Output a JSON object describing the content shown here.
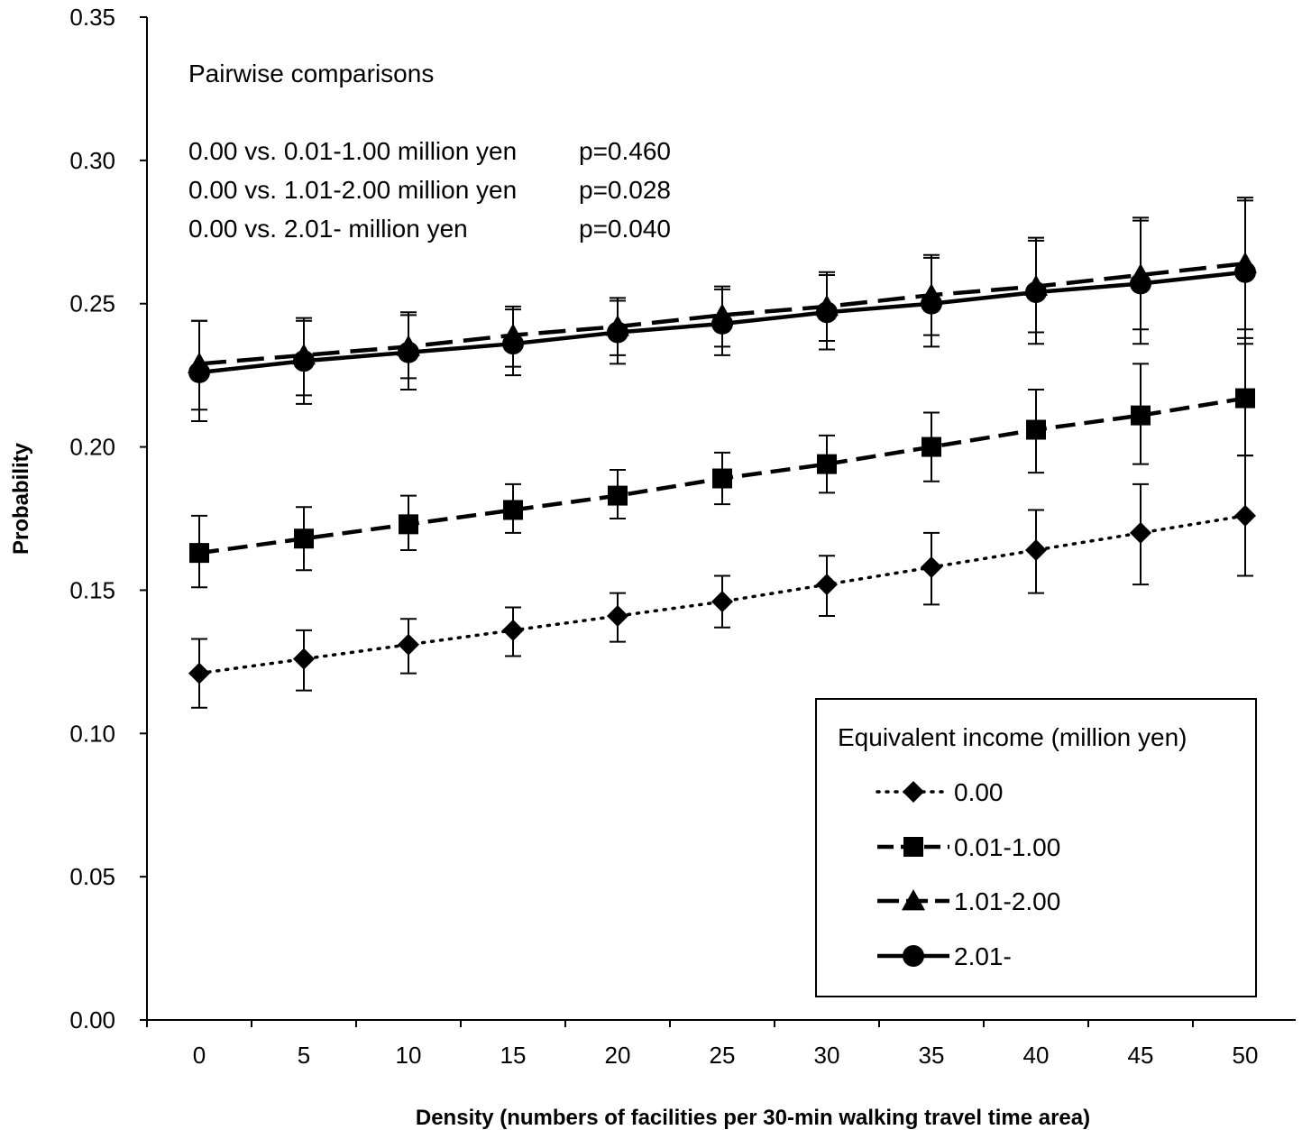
{
  "chart_data": {
    "type": "line",
    "xlabel": "Density (numbers of facilities per 30-min walking travel time area)",
    "ylabel": "Probability",
    "x": [
      0,
      5,
      10,
      15,
      20,
      25,
      30,
      35,
      40,
      45,
      50
    ],
    "x_ticks": [
      "0",
      "5",
      "10",
      "15",
      "20",
      "25",
      "30",
      "35",
      "40",
      "45",
      "50"
    ],
    "ylim": [
      0,
      0.35
    ],
    "y_ticks": [
      "0.00",
      "0.05",
      "0.10",
      "0.15",
      "0.20",
      "0.25",
      "0.30",
      "0.35"
    ],
    "y_tick_values": [
      0,
      0.05,
      0.1,
      0.15,
      0.2,
      0.25,
      0.3,
      0.35
    ],
    "grid": false,
    "legend": {
      "title": "Equivalent income (million yen)",
      "placement": "bottom-right"
    },
    "annotations": {
      "title": "Pairwise comparisons",
      "lines": [
        {
          "label": "0.00 vs. 0.01-1.00 million yen",
          "p": "p=0.460"
        },
        {
          "label": "0.00 vs. 1.01-2.00 million yen",
          "p": "p=0.028"
        },
        {
          "label": "0.00 vs. 2.01- million yen",
          "p": "p=0.040"
        }
      ]
    },
    "series": [
      {
        "name": "0.00",
        "marker": "diamond",
        "dash": "dotted",
        "color": "#000000",
        "values": [
          0.121,
          0.126,
          0.131,
          0.136,
          0.141,
          0.146,
          0.152,
          0.158,
          0.164,
          0.17,
          0.176
        ],
        "upper": [
          0.133,
          0.136,
          0.14,
          0.144,
          0.149,
          0.155,
          0.162,
          0.17,
          0.178,
          0.187,
          0.197
        ],
        "lower": [
          0.109,
          0.115,
          0.121,
          0.127,
          0.132,
          0.137,
          0.141,
          0.145,
          0.149,
          0.152,
          0.155
        ]
      },
      {
        "name": "0.01-1.00",
        "marker": "square",
        "dash": "dashed",
        "color": "#000000",
        "values": [
          0.163,
          0.168,
          0.173,
          0.178,
          0.183,
          0.189,
          0.194,
          0.2,
          0.206,
          0.211,
          0.217
        ],
        "upper": [
          0.176,
          0.179,
          0.183,
          0.187,
          0.192,
          0.198,
          0.204,
          0.212,
          0.22,
          0.229,
          0.238
        ],
        "lower": [
          0.151,
          0.157,
          0.164,
          0.17,
          0.175,
          0.18,
          0.184,
          0.188,
          0.191,
          0.194,
          0.197
        ]
      },
      {
        "name": "1.01-2.00",
        "marker": "triangle",
        "dash": "longdash",
        "color": "#000000",
        "values": [
          0.229,
          0.232,
          0.235,
          0.239,
          0.242,
          0.246,
          0.249,
          0.253,
          0.256,
          0.26,
          0.264
        ],
        "upper": [
          0.244,
          0.245,
          0.247,
          0.249,
          0.252,
          0.256,
          0.261,
          0.267,
          0.273,
          0.28,
          0.287
        ],
        "lower": [
          0.213,
          0.218,
          0.224,
          0.228,
          0.232,
          0.235,
          0.237,
          0.239,
          0.24,
          0.241,
          0.241
        ]
      },
      {
        "name": "2.01-",
        "marker": "circle",
        "dash": "solid",
        "color": "#000000",
        "values": [
          0.226,
          0.23,
          0.233,
          0.236,
          0.24,
          0.243,
          0.247,
          0.25,
          0.254,
          0.257,
          0.261
        ],
        "upper": [
          0.244,
          0.244,
          0.246,
          0.248,
          0.251,
          0.255,
          0.26,
          0.266,
          0.272,
          0.279,
          0.286
        ],
        "lower": [
          0.209,
          0.215,
          0.22,
          0.225,
          0.229,
          0.232,
          0.234,
          0.235,
          0.236,
          0.236,
          0.236
        ]
      }
    ]
  }
}
